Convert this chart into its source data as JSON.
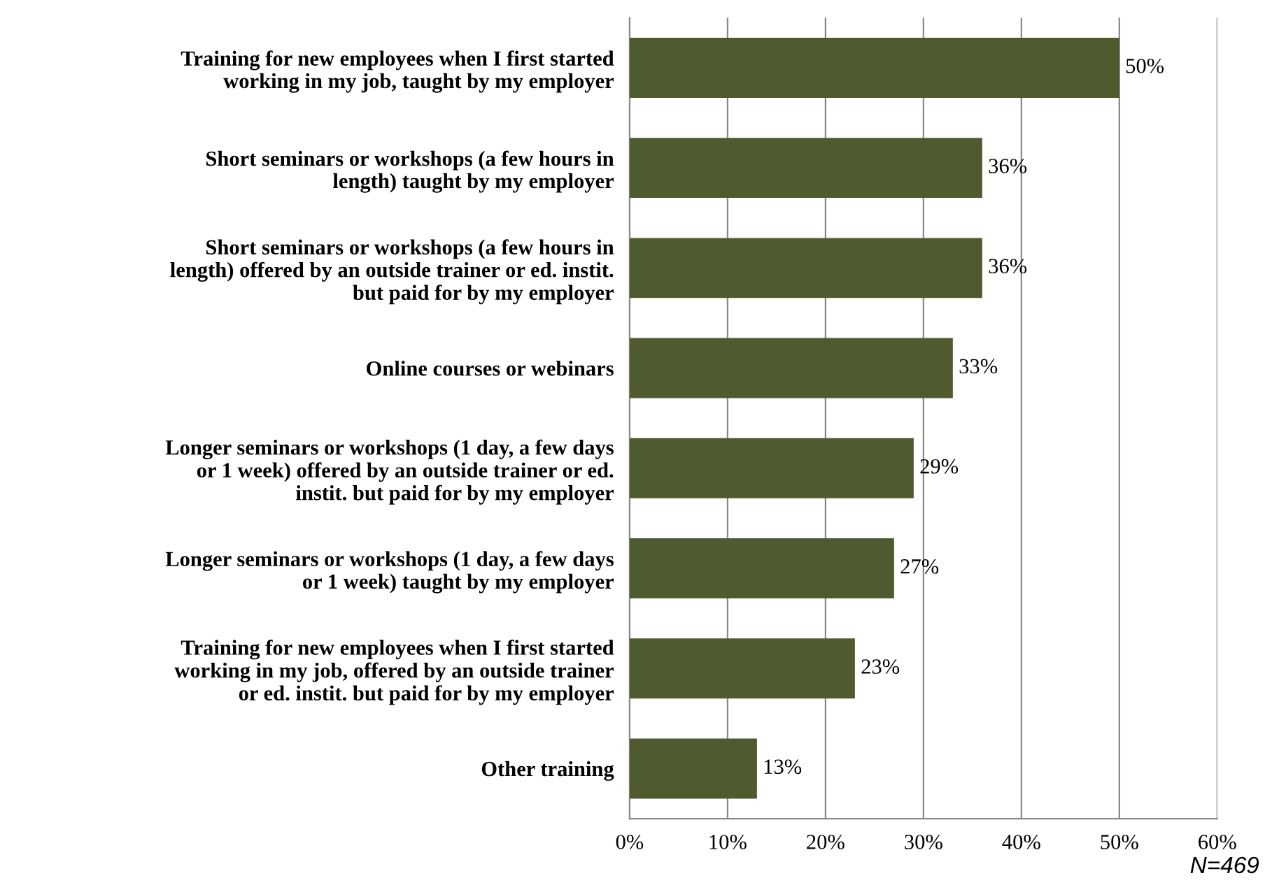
{
  "chart_data": {
    "type": "bar",
    "orientation": "horizontal",
    "categories": [
      "Training for new employees when I first started\nworking in my job, taught by my employer",
      "Short seminars or workshops (a few hours in\nlength) taught by my employer",
      "Short seminars or workshops (a few hours in\nlength) offered by an outside trainer or ed. instit.\nbut paid for by my employer",
      "Online courses or webinars",
      "Longer seminars or workshops (1 day, a few days\nor 1 week) offered by an outside trainer or ed.\ninstit. but paid for by my employer",
      "Longer seminars or workshops (1 day, a few days\nor 1 week) taught by my employer",
      "Training for new employees when I first started\nworking in my job, offered by an outside trainer\nor ed. instit. but paid for by my employer",
      "Other training"
    ],
    "values": [
      50,
      36,
      36,
      33,
      29,
      27,
      23,
      13
    ],
    "value_labels": [
      "50%",
      "36%",
      "36%",
      "33%",
      "29%",
      "27%",
      "23%",
      "13%"
    ],
    "color": "#4f5b2f",
    "xlim": [
      0,
      60
    ],
    "xticks": [
      {
        "value": 0,
        "label": "0%"
      },
      {
        "value": 10,
        "label": "10%"
      },
      {
        "value": 20,
        "label": "20%"
      },
      {
        "value": 30,
        "label": "30%"
      },
      {
        "value": 40,
        "label": "40%"
      },
      {
        "value": 50,
        "label": "50%"
      },
      {
        "value": 60,
        "label": "60%"
      }
    ],
    "grid": "x",
    "legend": false,
    "annotations": [
      "N=469"
    ]
  }
}
